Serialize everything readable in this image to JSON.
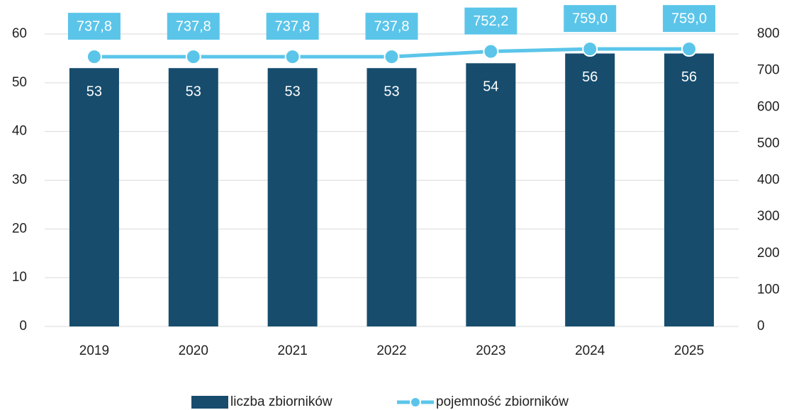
{
  "chart_data": {
    "type": "bar",
    "categories": [
      "2019",
      "2020",
      "2021",
      "2022",
      "2023",
      "2024",
      "2025"
    ],
    "series": [
      {
        "name": "liczba zbiorników",
        "type": "bar",
        "color": "#174c6d",
        "values": [
          53,
          53,
          53,
          53,
          54,
          56,
          56
        ]
      },
      {
        "name": "pojemność zbiorników",
        "type": "line",
        "axis": "y2",
        "color": "#5bc5e9",
        "values": [
          737.8,
          737.8,
          737.8,
          737.8,
          752.2,
          759.0,
          759.0
        ],
        "value_labels": [
          "737,8",
          "737,8",
          "737,8",
          "737,8",
          "752,2",
          "759,0",
          "759,0"
        ]
      }
    ],
    "ylim": [
      0,
      60
    ],
    "yticks": [
      0,
      10,
      20,
      30,
      40,
      50,
      60
    ],
    "y2lim": [
      0,
      800
    ],
    "y2ticks": [
      0,
      100,
      200,
      300,
      400,
      500,
      600,
      700,
      800
    ],
    "grid": true,
    "legend": "bottom"
  }
}
